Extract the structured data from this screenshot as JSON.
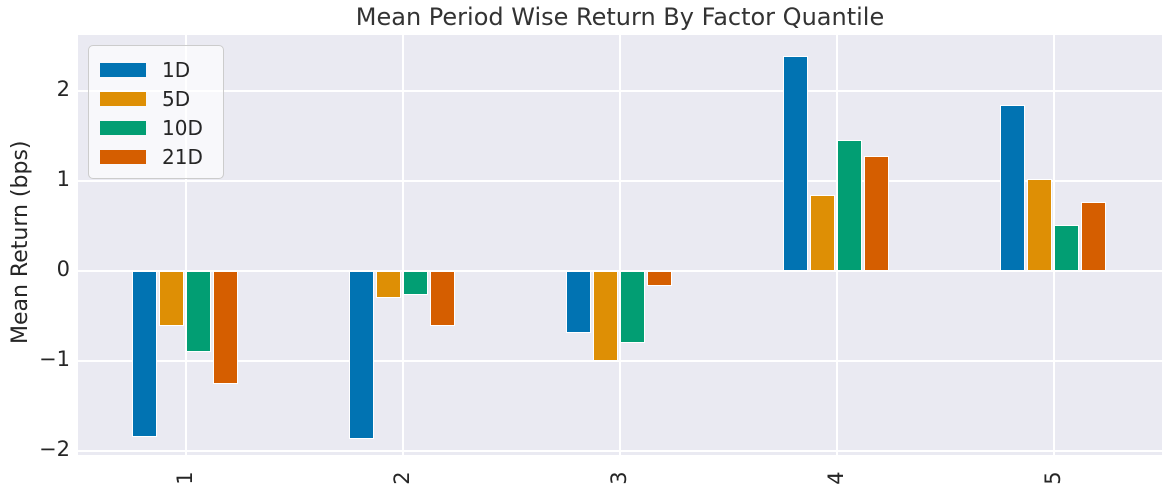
{
  "chart_data": {
    "type": "bar",
    "title": "Mean Period Wise Return By Factor Quantile",
    "xlabel": "",
    "ylabel": "Mean Return (bps)",
    "categories": [
      "1",
      "2",
      "3",
      "4",
      "5"
    ],
    "series": [
      {
        "name": "1D",
        "color": "#0173b2",
        "values": [
          -1.84,
          -1.86,
          -0.69,
          2.39,
          1.84
        ]
      },
      {
        "name": "5D",
        "color": "#de8f05",
        "values": [
          -0.61,
          -0.3,
          -1.0,
          0.84,
          1.02
        ]
      },
      {
        "name": "10D",
        "color": "#029e73",
        "values": [
          -0.9,
          -0.26,
          -0.8,
          1.46,
          0.51
        ]
      },
      {
        "name": "21D",
        "color": "#d55e00",
        "values": [
          -1.25,
          -0.61,
          -0.17,
          1.28,
          0.77
        ]
      }
    ],
    "ylim": [
      -2.04,
      2.62
    ],
    "y_ticks": [
      2,
      1,
      0,
      -1,
      -2
    ],
    "y_tick_labels": [
      "2",
      "1",
      "0",
      "−1",
      "−2"
    ],
    "grid": true,
    "legend_position": "upper left",
    "plot_background": "#eaeaf2",
    "grid_color": "#ffffff",
    "text_color": "#262626"
  }
}
